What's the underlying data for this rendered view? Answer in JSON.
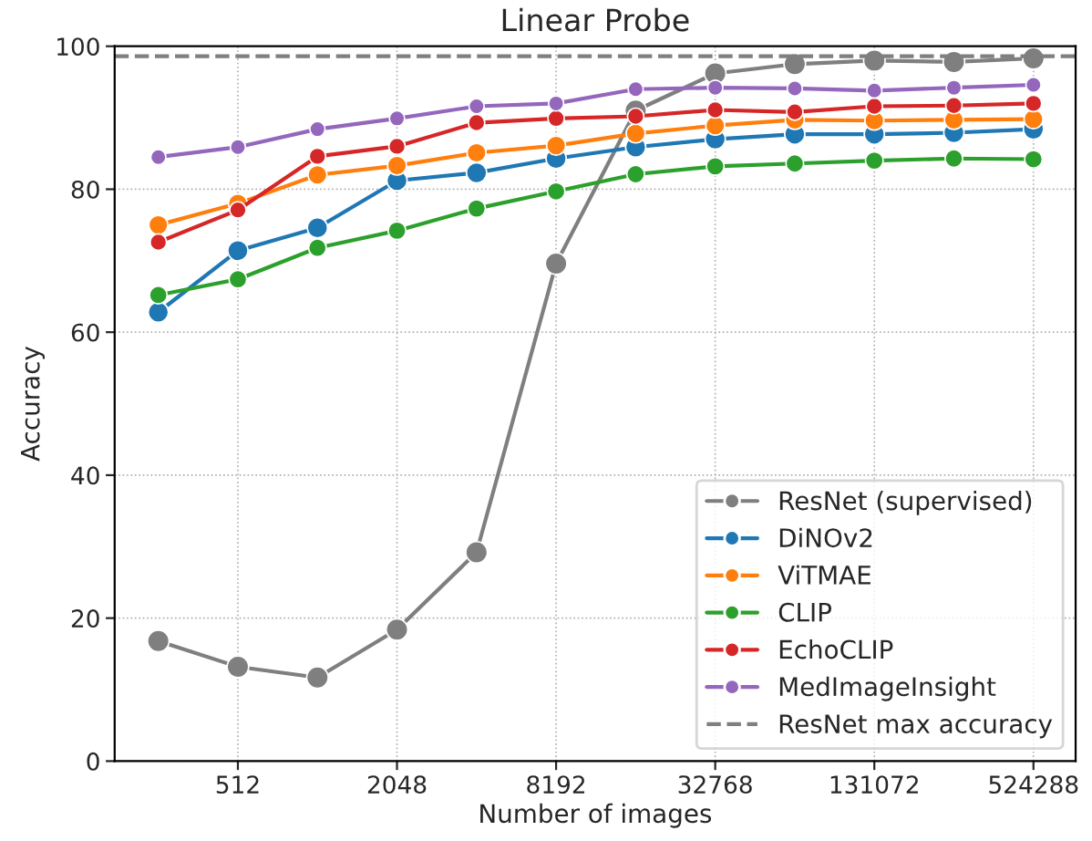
{
  "chart_data": {
    "type": "line",
    "title": "Linear Probe",
    "xlabel": "Number of images",
    "ylabel": "Accuracy",
    "x": [
      256,
      512,
      1024,
      2048,
      4096,
      8192,
      16384,
      32768,
      65536,
      131072,
      262144,
      524288
    ],
    "series": [
      {
        "name": "ResNet (supervised)",
        "color": "#7f7f7f",
        "values": [
          16.8,
          13.2,
          11.7,
          18.4,
          29.2,
          69.6,
          91.0,
          96.2,
          97.5,
          98.0,
          97.8,
          98.3
        ]
      },
      {
        "name": "DiNOv2",
        "color": "#1f77b4",
        "values": [
          62.8,
          71.4,
          74.6,
          81.2,
          82.3,
          84.3,
          85.9,
          87.0,
          87.7,
          87.7,
          87.9,
          88.4
        ]
      },
      {
        "name": "ViTMAE",
        "color": "#ff7f0e",
        "values": [
          75.0,
          78.0,
          82.0,
          83.3,
          85.1,
          86.1,
          87.8,
          88.9,
          89.7,
          89.6,
          89.7,
          89.8
        ]
      },
      {
        "name": "CLIP",
        "color": "#2ca02c",
        "values": [
          65.2,
          67.4,
          71.8,
          74.2,
          77.3,
          79.7,
          82.1,
          83.2,
          83.6,
          84.0,
          84.3,
          84.2
        ]
      },
      {
        "name": "EchoCLIP",
        "color": "#d62728",
        "values": [
          72.6,
          77.1,
          84.6,
          86.0,
          89.3,
          89.9,
          90.2,
          91.1,
          90.8,
          91.6,
          91.7,
          92.0
        ]
      },
      {
        "name": "MedImageInsight",
        "color": "#9467bd",
        "values": [
          84.5,
          85.9,
          88.4,
          89.9,
          91.6,
          92.0,
          94.0,
          94.2,
          94.1,
          93.8,
          94.2,
          94.6
        ]
      }
    ],
    "ref_lines": [
      {
        "axis": "y",
        "value": 98.6,
        "label": "ResNet max accuracy",
        "color": "#7f7f7f",
        "line_style": "dashed"
      }
    ],
    "log": "x",
    "xlim": [
      175,
      757000
    ],
    "xticks": [
      512,
      2048,
      8192,
      32768,
      131072,
      524288
    ],
    "ylim": [
      0,
      100
    ],
    "yticks": [
      0,
      20,
      40,
      60,
      80,
      100
    ],
    "grid": true,
    "legend": "bottom right",
    "marker": "circle",
    "line_style": "solid"
  }
}
